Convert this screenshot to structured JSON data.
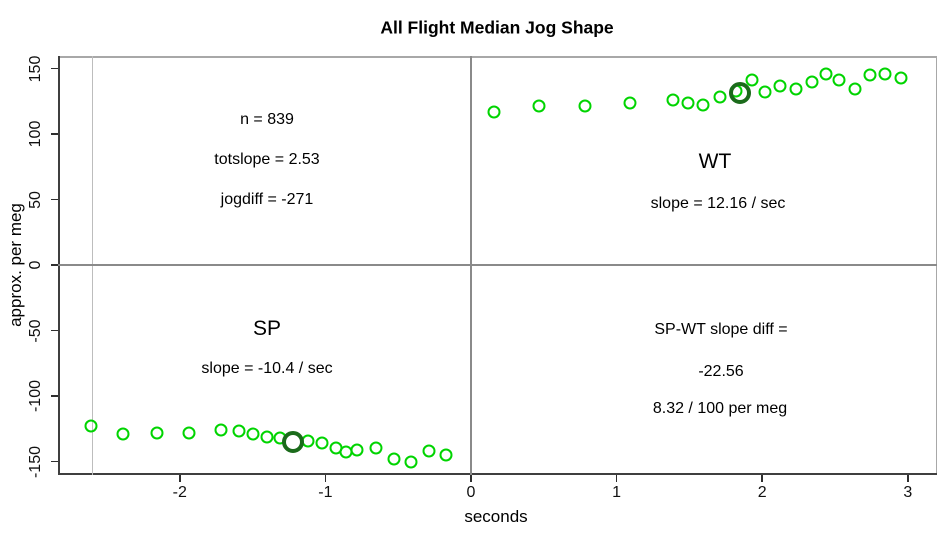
{
  "title": "All Flight Median Jog Shape",
  "axes": {
    "xlabel": "seconds",
    "ylabel": "approx. per meg"
  },
  "annotations": {
    "n": "n = 839",
    "totslope": "totslope = 2.53",
    "jogdiff": "jogdiff = -271",
    "wt_label": "WT",
    "wt_slope": "slope = 12.16 / sec",
    "sp_label": "SP",
    "sp_slope": "slope = -10.4 / sec",
    "diff_line1": "SP-WT slope diff =",
    "diff_line2": "-22.56",
    "diff_line3": "8.32 / 100 per meg"
  },
  "colors": {
    "point_green": "#00d400",
    "highlight_dark_green": "#1b6b1b",
    "reference_gray": "#8a8a8a",
    "reference_light_gray": "#bdbdbd",
    "axis_dark": "#3f3f3f",
    "box_light": "#a8a8a8"
  },
  "chart_data": {
    "type": "scatter",
    "title": "All Flight Median Jog Shape",
    "xlabel": "seconds",
    "ylabel": "approx. per meg",
    "xlim": [
      -2.8,
      3.2
    ],
    "ylim": [
      -160,
      160
    ],
    "x_ticks": [
      -2,
      -1,
      0,
      1,
      2,
      3
    ],
    "y_ticks": [
      -150,
      -100,
      -50,
      0,
      50,
      100,
      150
    ],
    "grid": false,
    "legend": "none",
    "series": [
      {
        "name": "SP",
        "marker": "open-circle",
        "color": "#00d400",
        "points": [
          [
            -2.61,
            -123
          ],
          [
            -2.39,
            -129
          ],
          [
            -2.16,
            -128
          ],
          [
            -1.94,
            -128
          ],
          [
            -1.72,
            -126
          ],
          [
            -1.59,
            -127
          ],
          [
            -1.5,
            -129
          ],
          [
            -1.4,
            -131
          ],
          [
            -1.31,
            -132
          ],
          [
            -1.12,
            -134
          ],
          [
            -1.02,
            -136
          ],
          [
            -0.93,
            -140
          ],
          [
            -0.86,
            -143
          ],
          [
            -0.78,
            -141
          ],
          [
            -0.65,
            -140
          ],
          [
            -0.53,
            -148
          ],
          [
            -0.41,
            -150
          ],
          [
            -0.29,
            -142
          ],
          [
            -0.17,
            -145
          ]
        ]
      },
      {
        "name": "WT",
        "marker": "open-circle",
        "color": "#00d400",
        "points": [
          [
            0.16,
            117
          ],
          [
            0.47,
            121
          ],
          [
            0.78,
            121
          ],
          [
            1.09,
            124
          ],
          [
            1.39,
            126
          ],
          [
            1.49,
            124
          ],
          [
            1.59,
            122
          ],
          [
            1.71,
            128
          ],
          [
            1.82,
            133
          ],
          [
            1.93,
            141
          ],
          [
            2.02,
            132
          ],
          [
            2.12,
            137
          ],
          [
            2.23,
            134
          ],
          [
            2.34,
            140
          ],
          [
            2.44,
            146
          ],
          [
            2.53,
            141
          ],
          [
            2.64,
            134
          ],
          [
            2.74,
            145
          ],
          [
            2.84,
            146
          ],
          [
            2.95,
            143
          ]
        ]
      }
    ],
    "highlights": [
      {
        "series": "SP",
        "x": -1.22,
        "y": -135,
        "marker": "thick-open-circle",
        "color": "#1b6b1b"
      },
      {
        "series": "WT",
        "x": 1.85,
        "y": 131,
        "marker": "thick-open-circle",
        "color": "#1b6b1b"
      }
    ],
    "reference_lines": [
      {
        "orientation": "vertical",
        "x": -2.6,
        "style": "light"
      },
      {
        "orientation": "vertical",
        "x": 0,
        "style": "normal"
      },
      {
        "orientation": "horizontal",
        "y": 0,
        "style": "normal"
      }
    ],
    "stats": {
      "n": 839,
      "totslope": 2.53,
      "jogdiff": -271,
      "wt_slope_per_sec": 12.16,
      "sp_slope_per_sec": -10.4,
      "sp_wt_slope_diff": -22.56,
      "diff_rate": "8.32 / 100 per meg"
    }
  }
}
